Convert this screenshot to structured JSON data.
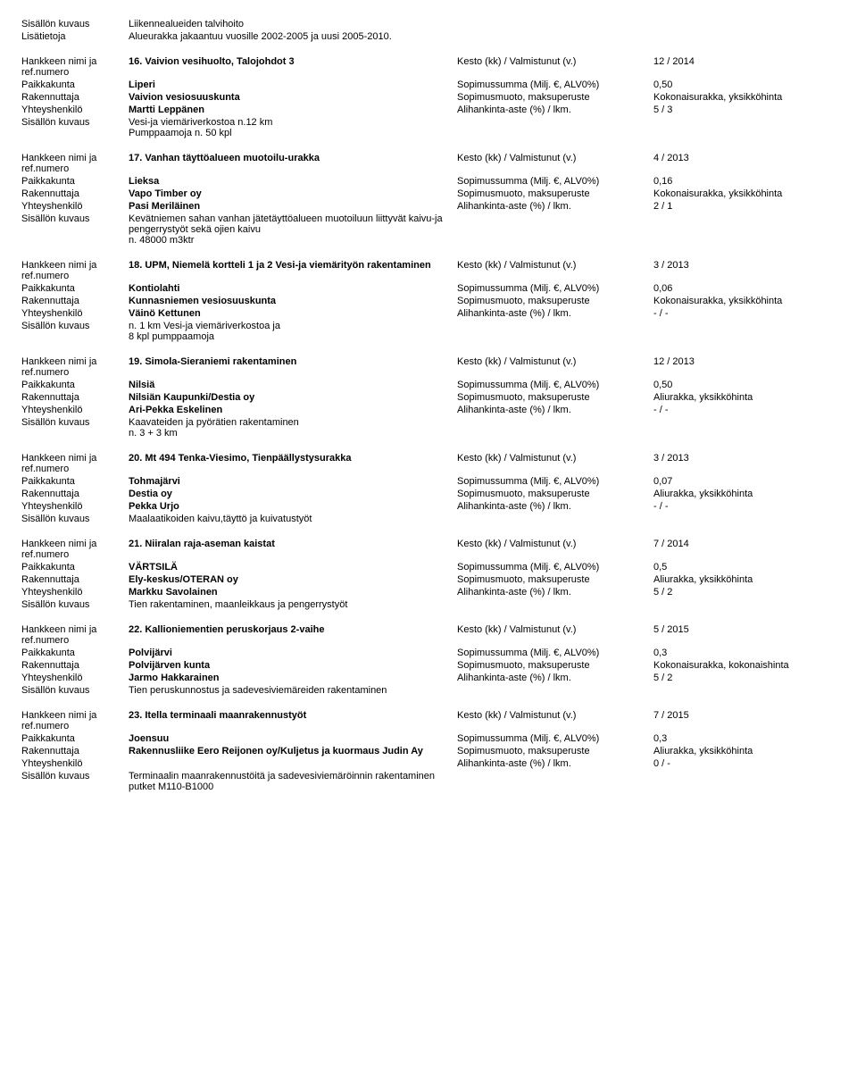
{
  "labels": {
    "sisallon": "Sisällön kuvaus",
    "lisatietoja": "Lisätietoja",
    "hankkeen": "Hankkeen nimi ja ref.numero",
    "paikkakunta": "Paikkakunta",
    "rakennuttaja": "Rakennuttaja",
    "yhteyshenkilo": "Yhteyshenkilö",
    "kesto": "Kesto (kk) / Valmistunut (v.)",
    "sopsum": "Sopimussumma (Milj. €, ALV0%)",
    "sopmuoto": "Sopimusmuoto, maksuperuste",
    "alihankinta": "Alihankinta-aste (%) / lkm."
  },
  "intro": {
    "sisallon": "Liikennealueiden talvihoito",
    "lisatietoja": "Alueurakka jakaantuu vuosille 2002-2005 ja uusi 2005-2010."
  },
  "projects": [
    {
      "title": "16. Vaivion vesihuolto, Talojohdot 3",
      "kesto": "12 / 2014",
      "paikkakunta": "Liperi",
      "sopsum": "0,50",
      "rakennuttaja": "Vaivion vesiosuuskunta",
      "sopmuoto": "Kokonaisurakka, yksikköhinta",
      "yhteyshenkilo": "Martti Leppänen",
      "alihankinta": "5 / 3",
      "sisallon": "Vesi-ja viemäriverkostoa n.12 km\nPumppaamoja n. 50 kpl"
    },
    {
      "title": "17. Vanhan täyttöalueen muotoilu-urakka",
      "kesto": "4 / 2013",
      "paikkakunta": "Lieksa",
      "sopsum": "0,16",
      "rakennuttaja": "Vapo Timber oy",
      "sopmuoto": "Kokonaisurakka, yksikköhinta",
      "yhteyshenkilo": "Pasi Meriläinen",
      "alihankinta": "2 / 1",
      "sisallon": "Kevätniemen sahan vanhan jätetäyttöalueen muotoiluun liittyvät kaivu-ja pengerrystyöt sekä ojien kaivu\nn. 48000 m3ktr"
    },
    {
      "title": "18. UPM, Niemelä kortteli 1 ja 2 Vesi-ja viemärityön rakentaminen",
      "kesto": "3 / 2013",
      "paikkakunta": "Kontiolahti",
      "sopsum": "0,06",
      "rakennuttaja": "Kunnasniemen vesiosuuskunta",
      "sopmuoto": "Kokonaisurakka, yksikköhinta",
      "yhteyshenkilo": "Väinö Kettunen",
      "alihankinta": "- / -",
      "sisallon": "n. 1 km Vesi-ja viemäriverkostoa ja\n8 kpl pumppaamoja"
    },
    {
      "title": "19. Simola-Sieraniemi rakentaminen",
      "kesto": "12 / 2013",
      "paikkakunta": "Nilsiä",
      "sopsum": "0,50",
      "rakennuttaja": "Nilsiän Kaupunki/Destia oy",
      "sopmuoto": "Aliurakka, yksikköhinta",
      "yhteyshenkilo": "Ari-Pekka Eskelinen",
      "alihankinta": "- / -",
      "sisallon": "Kaavateiden ja pyörätien rakentaminen\nn. 3 + 3 km"
    },
    {
      "title": "20. Mt 494 Tenka-Viesimo, Tienpäällystysurakka",
      "kesto": "3 / 2013",
      "paikkakunta": "Tohmajärvi",
      "sopsum": "0,07",
      "rakennuttaja": "Destia oy",
      "sopmuoto": "Aliurakka, yksikköhinta",
      "yhteyshenkilo": "Pekka Urjo",
      "alihankinta": "- / -",
      "sisallon": "Maalaatikoiden kaivu,täyttö ja kuivatustyöt"
    },
    {
      "title": "21. Niiralan raja-aseman kaistat",
      "kesto": "7 / 2014",
      "paikkakunta": "VÄRTSILÄ",
      "sopsum": "0,5",
      "rakennuttaja": "Ely-keskus/OTERAN oy",
      "sopmuoto": "Aliurakka, yksikköhinta",
      "yhteyshenkilo": "Markku Savolainen",
      "alihankinta": "5 / 2",
      "sisallon": "Tien rakentaminen, maanleikkaus ja pengerrystyöt"
    },
    {
      "title": "22. Kallioniementien peruskorjaus 2-vaihe",
      "kesto": "5 / 2015",
      "paikkakunta": "Polvijärvi",
      "sopsum": "0,3",
      "rakennuttaja": "Polvijärven kunta",
      "sopmuoto": "Kokonaisurakka, kokonaishinta",
      "yhteyshenkilo": "Jarmo Hakkarainen",
      "alihankinta": "5 / 2",
      "sisallon": "Tien peruskunnostus ja sadevesiviemäreiden rakentaminen"
    },
    {
      "title": "23. Itella terminaali maanrakennustyöt",
      "kesto": "7 / 2015",
      "paikkakunta": "Joensuu",
      "sopsum": "0,3",
      "rakennuttaja": "Rakennusliike Eero Reijonen oy/Kuljetus ja kuormaus Judin Ay",
      "sopmuoto": "Aliurakka, yksikköhinta",
      "yhteyshenkilo": "",
      "alihankinta": "0 / -",
      "sisallon": "Terminaalin maanrakennustöitä ja sadevesiviemäröinnin rakentaminen putket M110-B1000"
    }
  ]
}
